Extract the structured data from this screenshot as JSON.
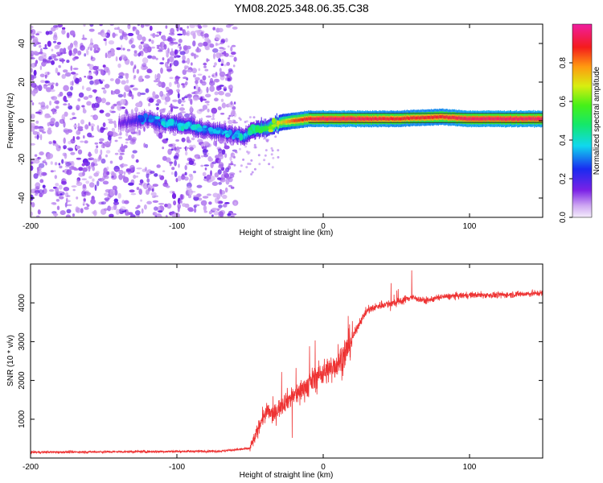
{
  "title": "YM08.2025.348.06.35.C38",
  "chart_data": [
    {
      "type": "heatmap",
      "name": "spectrogram",
      "xlabel": "Height of straight line (km)",
      "ylabel": "Frequency (Hz)",
      "xlim": [
        -200,
        150
      ],
      "ylim": [
        -50,
        50
      ],
      "xticks": [
        -200,
        -100,
        0,
        100
      ],
      "yticks": [
        -40,
        -20,
        0,
        20,
        40
      ],
      "colorbar": {
        "label": "Normalized spectral amplitude",
        "range": [
          0,
          1
        ],
        "ticks": [
          0.0,
          0.2,
          0.4,
          0.6,
          0.8
        ]
      },
      "ridge": {
        "x": [
          -140,
          -130,
          -120,
          -110,
          -100,
          -90,
          -80,
          -70,
          -60,
          -55,
          -50,
          -45,
          -40,
          -35,
          -30,
          -20,
          -10,
          0,
          20,
          50,
          80,
          100,
          150
        ],
        "freq": [
          -1,
          0,
          1,
          -1,
          -2,
          -3,
          -5,
          -6,
          -7,
          -8,
          -6,
          -4,
          -4,
          -3,
          -1,
          0,
          1,
          1,
          1,
          1,
          2,
          1,
          1
        ],
        "amplitude": [
          0.15,
          0.2,
          0.25,
          0.3,
          0.35,
          0.35,
          0.3,
          0.3,
          0.3,
          0.35,
          0.4,
          0.45,
          0.5,
          0.6,
          0.7,
          0.85,
          0.9,
          0.95,
          0.95,
          0.9,
          0.9,
          0.95,
          0.95
        ]
      },
      "noise_region": [
        -200,
        -60
      ]
    },
    {
      "type": "line",
      "name": "snr",
      "xlabel": "Height of straight line (km)",
      "ylabel": "SNR (10 * v/v)",
      "xlim": [
        -200,
        150
      ],
      "ylim": [
        0,
        5000
      ],
      "xticks": [
        -200,
        -100,
        0,
        100
      ],
      "yticks": [
        1000,
        2000,
        3000,
        4000
      ],
      "color": "#ee3333",
      "series": [
        {
          "name": "SNR",
          "x": [
            -200,
            -150,
            -100,
            -70,
            -50,
            -46,
            -42,
            -38,
            -34,
            -30,
            -25,
            -20,
            -15,
            -10,
            -5,
            0,
            5,
            10,
            15,
            20,
            25,
            30,
            40,
            50,
            60,
            70,
            80,
            100,
            120,
            150
          ],
          "y": [
            150,
            160,
            170,
            180,
            250,
            600,
            1000,
            1200,
            1100,
            1300,
            1500,
            1600,
            1750,
            1900,
            2100,
            2200,
            2300,
            2450,
            2700,
            3100,
            3500,
            3800,
            3950,
            4000,
            4150,
            4050,
            4150,
            4200,
            4200,
            4250
          ]
        }
      ]
    }
  ]
}
